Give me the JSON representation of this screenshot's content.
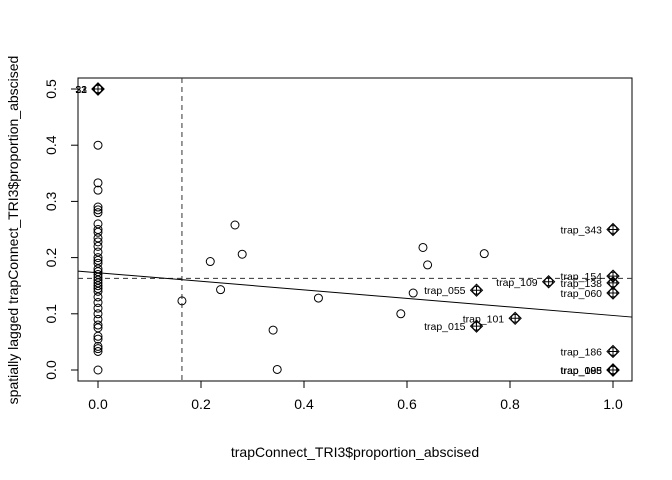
{
  "chart_data": {
    "type": "scatter",
    "title": "",
    "xlabel": "trapConnect_TRI3$proportion_abscised",
    "ylabel": "spatially lagged trapConnect_TRI3$proportion_abscised",
    "xlim": [
      -0.04,
      1.04
    ],
    "ylim": [
      -0.01,
      0.52
    ],
    "x_ticks": [
      "0.0",
      "0.2",
      "0.4",
      "0.6",
      "0.8",
      "1.0"
    ],
    "y_ticks": [
      "0.0",
      "0.1",
      "0.2",
      "0.3",
      "0.4",
      "0.5"
    ],
    "grid": false,
    "mean_x": 0.163,
    "mean_y": 0.163,
    "regression": {
      "intercept": 0.173,
      "slope": -0.076
    },
    "points": [
      {
        "x": 0,
        "y": 0.4
      },
      {
        "x": 0,
        "y": 0.333
      },
      {
        "x": 0,
        "y": 0.32
      },
      {
        "x": 0,
        "y": 0.29
      },
      {
        "x": 0,
        "y": 0.285
      },
      {
        "x": 0,
        "y": 0.28
      },
      {
        "x": 0,
        "y": 0.26
      },
      {
        "x": 0,
        "y": 0.25
      },
      {
        "x": 0,
        "y": 0.245
      },
      {
        "x": 0,
        "y": 0.235
      },
      {
        "x": 0,
        "y": 0.228
      },
      {
        "x": 0,
        "y": 0.22
      },
      {
        "x": 0,
        "y": 0.21
      },
      {
        "x": 0,
        "y": 0.2
      },
      {
        "x": 0,
        "y": 0.195
      },
      {
        "x": 0,
        "y": 0.19
      },
      {
        "x": 0,
        "y": 0.18
      },
      {
        "x": 0,
        "y": 0.175
      },
      {
        "x": 0,
        "y": 0.17
      },
      {
        "x": 0,
        "y": 0.165
      },
      {
        "x": 0,
        "y": 0.16
      },
      {
        "x": 0,
        "y": 0.155
      },
      {
        "x": 0,
        "y": 0.15
      },
      {
        "x": 0,
        "y": 0.145
      },
      {
        "x": 0,
        "y": 0.14
      },
      {
        "x": 0,
        "y": 0.13
      },
      {
        "x": 0,
        "y": 0.12
      },
      {
        "x": 0,
        "y": 0.11
      },
      {
        "x": 0,
        "y": 0.1
      },
      {
        "x": 0,
        "y": 0.09
      },
      {
        "x": 0,
        "y": 0.08
      },
      {
        "x": 0,
        "y": 0.075
      },
      {
        "x": 0,
        "y": 0.06
      },
      {
        "x": 0,
        "y": 0.055
      },
      {
        "x": 0,
        "y": 0.042
      },
      {
        "x": 0,
        "y": 0.038
      },
      {
        "x": 0,
        "y": 0.033
      },
      {
        "x": 0,
        "y": 0.0
      },
      {
        "x": 0.163,
        "y": 0.123
      },
      {
        "x": 0.218,
        "y": 0.193
      },
      {
        "x": 0.238,
        "y": 0.143
      },
      {
        "x": 0.266,
        "y": 0.258
      },
      {
        "x": 0.28,
        "y": 0.206
      },
      {
        "x": 0.34,
        "y": 0.071
      },
      {
        "x": 0.348,
        "y": 0.001
      },
      {
        "x": 0.428,
        "y": 0.128
      },
      {
        "x": 0.588,
        "y": 0.1
      },
      {
        "x": 0.612,
        "y": 0.137
      },
      {
        "x": 0.631,
        "y": 0.218
      },
      {
        "x": 0.64,
        "y": 0.187
      },
      {
        "x": 0.75,
        "y": 0.207
      }
    ],
    "influential": [
      {
        "x": 0,
        "y": 0.5,
        "label": "22",
        "side": "left"
      },
      {
        "x": 0,
        "y": 0.5,
        "label": "33",
        "side": "left"
      },
      {
        "x": 0,
        "y": 0.5,
        "label": "31",
        "side": "left"
      },
      {
        "x": 1.0,
        "y": 0.25,
        "label": "trap_343",
        "side": "left"
      },
      {
        "x": 1.0,
        "y": 0.167,
        "label": "trap_154",
        "side": "left"
      },
      {
        "x": 1.0,
        "y": 0.155,
        "label": "trap_138",
        "side": "left"
      },
      {
        "x": 1.0,
        "y": 0.137,
        "label": "trap_060",
        "side": "left"
      },
      {
        "x": 0.875,
        "y": 0.157,
        "label": "trap_109",
        "side": "left"
      },
      {
        "x": 0.735,
        "y": 0.142,
        "label": "trap_055",
        "side": "left"
      },
      {
        "x": 0.81,
        "y": 0.092,
        "label": "trap_101",
        "side": "left"
      },
      {
        "x": 0.735,
        "y": 0.078,
        "label": "trap_015",
        "side": "left"
      },
      {
        "x": 1.0,
        "y": 0.033,
        "label": "trap_186",
        "side": "left"
      },
      {
        "x": 1.0,
        "y": 0.0,
        "label": "trap_105",
        "side": "left"
      },
      {
        "x": 1.0,
        "y": 0.0,
        "label": "trap_088",
        "side": "left"
      },
      {
        "x": 1.0,
        "y": 0.0,
        "label": "trap_095",
        "side": "left"
      }
    ]
  }
}
